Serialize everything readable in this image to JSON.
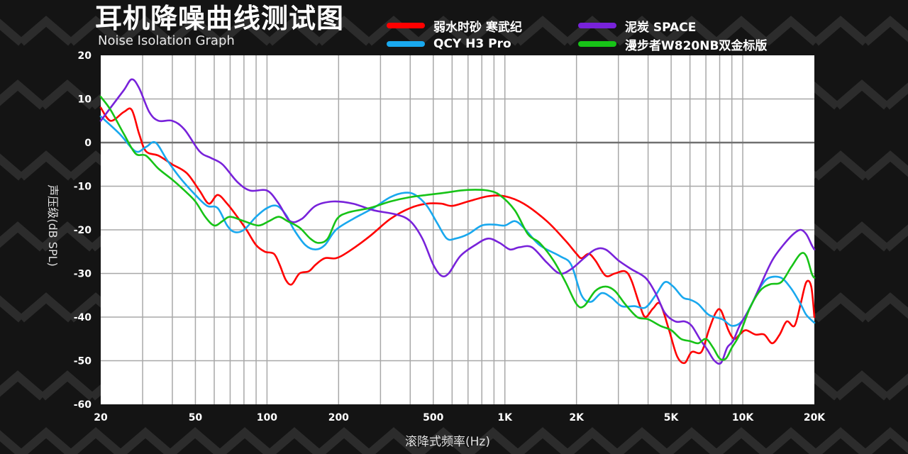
{
  "header": {
    "title": "耳机降噪曲线测试图",
    "subtitle": "Noise Isolation Graph"
  },
  "colors": {
    "background": "#141414",
    "plot_bg": "#ffffff",
    "grid": "#a8a8a8",
    "zero_line": "#707070"
  },
  "chart_data": {
    "type": "line",
    "title": "耳机降噪曲线测试图",
    "subtitle": "Noise Isolation Graph",
    "xlabel": "滚降式频率(Hz)",
    "ylabel": "声压级(dB SPL)",
    "xscale": "log",
    "xlim": [
      20,
      20000
    ],
    "ylim": [
      -60,
      20
    ],
    "xticks": [
      {
        "v": 20,
        "label": "20"
      },
      {
        "v": 50,
        "label": "50"
      },
      {
        "v": 100,
        "label": "100"
      },
      {
        "v": 200,
        "label": "200"
      },
      {
        "v": 500,
        "label": "500"
      },
      {
        "v": 1000,
        "label": "1K"
      },
      {
        "v": 2000,
        "label": "2K"
      },
      {
        "v": 5000,
        "label": "5K"
      },
      {
        "v": 10000,
        "label": "10K"
      },
      {
        "v": 20000,
        "label": "20K"
      }
    ],
    "yticks": [
      20,
      10,
      0,
      -10,
      -20,
      -30,
      -40,
      -50,
      -60
    ],
    "grid": true,
    "legend_position": "top-right",
    "series": [
      {
        "name": "弱水时砂 寒武纪",
        "color": "#ff0000",
        "points": [
          [
            20,
            8
          ],
          [
            22,
            5
          ],
          [
            25,
            7
          ],
          [
            27,
            7.5
          ],
          [
            29,
            2
          ],
          [
            31,
            -2
          ],
          [
            35,
            -3
          ],
          [
            40,
            -5
          ],
          [
            46,
            -7
          ],
          [
            52,
            -11
          ],
          [
            57,
            -14
          ],
          [
            62,
            -12
          ],
          [
            68,
            -14
          ],
          [
            75,
            -17
          ],
          [
            82,
            -20
          ],
          [
            90,
            -23.5
          ],
          [
            98,
            -25
          ],
          [
            107,
            -25.5
          ],
          [
            113,
            -28
          ],
          [
            120,
            -31.5
          ],
          [
            127,
            -32.5
          ],
          [
            137,
            -30
          ],
          [
            150,
            -29.5
          ],
          [
            160,
            -28
          ],
          [
            175,
            -26.5
          ],
          [
            195,
            -26.5
          ],
          [
            220,
            -25
          ],
          [
            270,
            -21.5
          ],
          [
            330,
            -17.5
          ],
          [
            400,
            -15
          ],
          [
            470,
            -14
          ],
          [
            540,
            -14
          ],
          [
            600,
            -14.5
          ],
          [
            700,
            -13.5
          ],
          [
            850,
            -12.3
          ],
          [
            1000,
            -12.3
          ],
          [
            1200,
            -14
          ],
          [
            1500,
            -18
          ],
          [
            1800,
            -22.5
          ],
          [
            2000,
            -25.5
          ],
          [
            2100,
            -26.5
          ],
          [
            2250,
            -25.5
          ],
          [
            2400,
            -27
          ],
          [
            2650,
            -30.5
          ],
          [
            2900,
            -30
          ],
          [
            3200,
            -29.5
          ],
          [
            3400,
            -31.5
          ],
          [
            3700,
            -37.5
          ],
          [
            3900,
            -40
          ],
          [
            4200,
            -38
          ],
          [
            4500,
            -37
          ],
          [
            4900,
            -43
          ],
          [
            5300,
            -49
          ],
          [
            5700,
            -50.5
          ],
          [
            6100,
            -48
          ],
          [
            6700,
            -48
          ],
          [
            7200,
            -43
          ],
          [
            7700,
            -39
          ],
          [
            8100,
            -38.5
          ],
          [
            8700,
            -43
          ],
          [
            9200,
            -45
          ],
          [
            9700,
            -44
          ],
          [
            10300,
            -43
          ],
          [
            11300,
            -44
          ],
          [
            12300,
            -44
          ],
          [
            13300,
            -46
          ],
          [
            14300,
            -44
          ],
          [
            15300,
            -41
          ],
          [
            16500,
            -42
          ],
          [
            17500,
            -37
          ],
          [
            18500,
            -32
          ],
          [
            19400,
            -33
          ],
          [
            20000,
            -40
          ]
        ]
      },
      {
        "name": "QCY H3 Pro",
        "color": "#19a8ee",
        "points": [
          [
            20,
            6
          ],
          [
            24,
            2
          ],
          [
            28,
            -2
          ],
          [
            31,
            -1
          ],
          [
            34,
            0
          ],
          [
            38,
            -4
          ],
          [
            43,
            -8
          ],
          [
            50,
            -12
          ],
          [
            56,
            -14.5
          ],
          [
            62,
            -15
          ],
          [
            68,
            -19
          ],
          [
            73,
            -20.5
          ],
          [
            80,
            -20
          ],
          [
            90,
            -17
          ],
          [
            100,
            -15
          ],
          [
            110,
            -14.5
          ],
          [
            120,
            -16.5
          ],
          [
            130,
            -20
          ],
          [
            145,
            -23.5
          ],
          [
            160,
            -24.5
          ],
          [
            175,
            -23.5
          ],
          [
            195,
            -20
          ],
          [
            230,
            -17.5
          ],
          [
            280,
            -15
          ],
          [
            330,
            -12.5
          ],
          [
            380,
            -11.5
          ],
          [
            420,
            -12
          ],
          [
            470,
            -14.5
          ],
          [
            520,
            -18.5
          ],
          [
            570,
            -22
          ],
          [
            620,
            -22
          ],
          [
            700,
            -21
          ],
          [
            800,
            -19
          ],
          [
            900,
            -18.8
          ],
          [
            1000,
            -19
          ],
          [
            1100,
            -18
          ],
          [
            1200,
            -19.5
          ],
          [
            1400,
            -23.5
          ],
          [
            1700,
            -26
          ],
          [
            1900,
            -28
          ],
          [
            2100,
            -35
          ],
          [
            2300,
            -36.5
          ],
          [
            2550,
            -34.5
          ],
          [
            2800,
            -35.5
          ],
          [
            3100,
            -37.5
          ],
          [
            3500,
            -37.5
          ],
          [
            3900,
            -37.8
          ],
          [
            4300,
            -35
          ],
          [
            4700,
            -32
          ],
          [
            5100,
            -33
          ],
          [
            5600,
            -35.5
          ],
          [
            6000,
            -36
          ],
          [
            6500,
            -37
          ],
          [
            7200,
            -39.5
          ],
          [
            8200,
            -40.5
          ],
          [
            9000,
            -42
          ],
          [
            9900,
            -41
          ],
          [
            10900,
            -37
          ],
          [
            11900,
            -33
          ],
          [
            12900,
            -31
          ],
          [
            14500,
            -31
          ],
          [
            16000,
            -33.5
          ],
          [
            17500,
            -37
          ],
          [
            18500,
            -39.5
          ],
          [
            20000,
            -41.3
          ]
        ]
      },
      {
        "name": "泥炭 SPACE",
        "color": "#7822da",
        "points": [
          [
            20,
            5
          ],
          [
            22,
            8
          ],
          [
            25,
            12
          ],
          [
            27,
            14.5
          ],
          [
            29,
            12.5
          ],
          [
            32,
            7
          ],
          [
            35,
            5
          ],
          [
            40,
            5
          ],
          [
            45,
            3
          ],
          [
            52,
            -2
          ],
          [
            58,
            -3.5
          ],
          [
            65,
            -5
          ],
          [
            75,
            -9
          ],
          [
            85,
            -11
          ],
          [
            100,
            -11
          ],
          [
            112,
            -14
          ],
          [
            125,
            -18
          ],
          [
            140,
            -17.5
          ],
          [
            160,
            -14.5
          ],
          [
            190,
            -13.5
          ],
          [
            230,
            -14
          ],
          [
            280,
            -15.5
          ],
          [
            350,
            -16.5
          ],
          [
            400,
            -18
          ],
          [
            450,
            -22
          ],
          [
            500,
            -28
          ],
          [
            540,
            -30.5
          ],
          [
            580,
            -30
          ],
          [
            650,
            -26
          ],
          [
            750,
            -23.5
          ],
          [
            850,
            -22
          ],
          [
            950,
            -23
          ],
          [
            1050,
            -24.5
          ],
          [
            1150,
            -24
          ],
          [
            1300,
            -24
          ],
          [
            1500,
            -27.5
          ],
          [
            1700,
            -30
          ],
          [
            1900,
            -29
          ],
          [
            2150,
            -26.5
          ],
          [
            2400,
            -24.5
          ],
          [
            2650,
            -24.5
          ],
          [
            3000,
            -27
          ],
          [
            3400,
            -29
          ],
          [
            3900,
            -31
          ],
          [
            4300,
            -34.5
          ],
          [
            4700,
            -39
          ],
          [
            5200,
            -41
          ],
          [
            5700,
            -41
          ],
          [
            6100,
            -42
          ],
          [
            6600,
            -45
          ],
          [
            7100,
            -47.5
          ],
          [
            7600,
            -50
          ],
          [
            8100,
            -50.5
          ],
          [
            8600,
            -47
          ],
          [
            9100,
            -45.5
          ],
          [
            9700,
            -42
          ],
          [
            10700,
            -38
          ],
          [
            11800,
            -33
          ],
          [
            13300,
            -27
          ],
          [
            14800,
            -23.5
          ],
          [
            16300,
            -21
          ],
          [
            17500,
            -20
          ],
          [
            18500,
            -21
          ],
          [
            19500,
            -23.5
          ],
          [
            20000,
            -24.5
          ]
        ]
      },
      {
        "name": "漫步者W820NB双金标版",
        "color": "#17c317",
        "points": [
          [
            20,
            10.5
          ],
          [
            22,
            7.5
          ],
          [
            25,
            2
          ],
          [
            28,
            -2.5
          ],
          [
            31,
            -3
          ],
          [
            35,
            -6
          ],
          [
            40,
            -8.5
          ],
          [
            45,
            -11
          ],
          [
            50,
            -13.5
          ],
          [
            55,
            -17
          ],
          [
            60,
            -19
          ],
          [
            65,
            -18
          ],
          [
            70,
            -17
          ],
          [
            80,
            -18
          ],
          [
            92,
            -19
          ],
          [
            102,
            -18
          ],
          [
            112,
            -17
          ],
          [
            122,
            -18
          ],
          [
            137,
            -19.5
          ],
          [
            152,
            -22
          ],
          [
            165,
            -23
          ],
          [
            180,
            -22
          ],
          [
            197,
            -17.5
          ],
          [
            220,
            -16
          ],
          [
            270,
            -15
          ],
          [
            330,
            -13.5
          ],
          [
            400,
            -12.5
          ],
          [
            470,
            -12
          ],
          [
            560,
            -11.5
          ],
          [
            650,
            -11
          ],
          [
            750,
            -10.8
          ],
          [
            850,
            -11
          ],
          [
            950,
            -12
          ],
          [
            1100,
            -15.5
          ],
          [
            1250,
            -21
          ],
          [
            1400,
            -23
          ],
          [
            1600,
            -27
          ],
          [
            1800,
            -32
          ],
          [
            2000,
            -37
          ],
          [
            2150,
            -37.5
          ],
          [
            2400,
            -34
          ],
          [
            2650,
            -33
          ],
          [
            2900,
            -34
          ],
          [
            3200,
            -37
          ],
          [
            3600,
            -40
          ],
          [
            4000,
            -40.5
          ],
          [
            4500,
            -42
          ],
          [
            5000,
            -43
          ],
          [
            5500,
            -45
          ],
          [
            6000,
            -45.5
          ],
          [
            6500,
            -46
          ],
          [
            7000,
            -45
          ],
          [
            7500,
            -47
          ],
          [
            8000,
            -49.5
          ],
          [
            8500,
            -49.5
          ],
          [
            9000,
            -47
          ],
          [
            9700,
            -44
          ],
          [
            10700,
            -38
          ],
          [
            11800,
            -34
          ],
          [
            13000,
            -32.5
          ],
          [
            14500,
            -32
          ],
          [
            16000,
            -28.5
          ],
          [
            17500,
            -25.5
          ],
          [
            18500,
            -26
          ],
          [
            19500,
            -30
          ],
          [
            20000,
            -31
          ]
        ]
      }
    ]
  }
}
